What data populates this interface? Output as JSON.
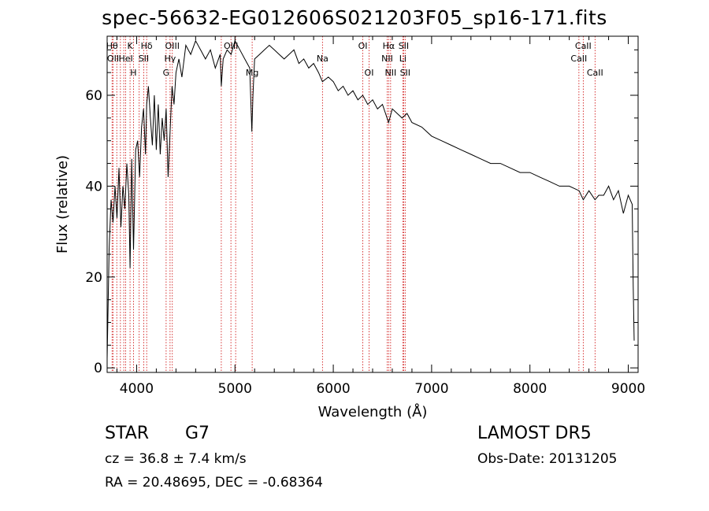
{
  "title": "spec-56632-EG012606S021203F05_sp16-171.fits",
  "info": {
    "object_class": "STAR",
    "subclass": "G7",
    "survey": "LAMOST DR5",
    "redshift": "cz = 36.8 ± 7.4 km/s",
    "obs_date": "Obs-Date: 20131205",
    "coords": "RA =  20.48695, DEC =  -0.68364"
  },
  "colors": {
    "spectrum": "#000000",
    "line_markers": "#cc0000",
    "axes": "#000000"
  },
  "chart_data": {
    "type": "line",
    "xlabel": "Wavelength (Å)",
    "ylabel": "Flux (relative)",
    "xlim": [
      3700,
      9100
    ],
    "ylim": [
      -1,
      73
    ],
    "x_ticks": [
      4000,
      5000,
      6000,
      7000,
      8000,
      9000
    ],
    "y_ticks": [
      0,
      20,
      40,
      60
    ],
    "grid": false,
    "series": [
      {
        "x": [
          3700,
          3720,
          3740,
          3760,
          3780,
          3800,
          3820,
          3840,
          3860,
          3880,
          3900,
          3920,
          3933,
          3950,
          3968,
          3990,
          4010,
          4030,
          4050,
          4070,
          4090,
          4102,
          4120,
          4140,
          4160,
          4180,
          4200,
          4220,
          4240,
          4260,
          4280,
          4300,
          4320,
          4340,
          4360,
          4380,
          4400,
          4430,
          4460,
          4500,
          4550,
          4600,
          4650,
          4700,
          4750,
          4800,
          4850,
          4861,
          4880,
          4920,
          4960,
          5000,
          5050,
          5100,
          5150,
          5172,
          5183,
          5200,
          5250,
          5300,
          5350,
          5400,
          5450,
          5500,
          5550,
          5600,
          5650,
          5700,
          5750,
          5800,
          5850,
          5890,
          5950,
          6000,
          6050,
          6100,
          6150,
          6200,
          6250,
          6300,
          6350,
          6400,
          6450,
          6500,
          6563,
          6600,
          6650,
          6700,
          6750,
          6800,
          6900,
          7000,
          7100,
          7200,
          7300,
          7400,
          7500,
          7600,
          7700,
          7800,
          7900,
          8000,
          8100,
          8200,
          8300,
          8400,
          8500,
          8542,
          8600,
          8662,
          8700,
          8750,
          8800,
          8850,
          8900,
          8950,
          9000,
          9040,
          9050,
          9060
        ],
        "y": [
          2,
          26,
          37,
          32,
          40,
          33,
          44,
          31,
          40,
          35,
          45,
          38,
          22,
          46,
          26,
          48,
          50,
          42,
          53,
          57,
          47,
          58,
          62,
          55,
          49,
          60,
          48,
          58,
          47,
          55,
          50,
          57,
          42,
          52,
          62,
          58,
          65,
          68,
          64,
          71,
          69,
          72,
          70,
          68,
          70,
          66,
          69,
          62,
          68,
          70,
          69,
          72,
          70,
          68,
          66,
          52,
          60,
          68,
          69,
          70,
          71,
          70,
          69,
          68,
          69,
          70,
          67,
          68,
          66,
          67,
          65,
          63,
          64,
          63,
          61,
          62,
          60,
          61,
          59,
          60,
          58,
          59,
          57,
          58,
          54,
          57,
          56,
          55,
          56,
          54,
          53,
          51,
          50,
          49,
          48,
          47,
          46,
          45,
          45,
          44,
          43,
          43,
          42,
          41,
          40,
          40,
          39,
          37,
          39,
          37,
          38,
          38,
          40,
          37,
          39,
          34,
          38,
          36,
          18,
          6
        ]
      }
    ],
    "line_markers": [
      {
        "x": 3750,
        "label": "Hθ",
        "row": 1
      },
      {
        "x": 3760,
        "label": "OII",
        "row": 2
      },
      {
        "x": 3798,
        "label": "",
        "row": 0
      },
      {
        "x": 3835,
        "label": "",
        "row": 0
      },
      {
        "x": 3869,
        "label": "",
        "row": 0
      },
      {
        "x": 3889,
        "label": "HeI",
        "row": 2
      },
      {
        "x": 3933,
        "label": "K",
        "row": 1
      },
      {
        "x": 3968,
        "label": "H",
        "row": 3
      },
      {
        "x": 4026,
        "label": "",
        "row": 0
      },
      {
        "x": 4072,
        "label": "SII",
        "row": 2
      },
      {
        "x": 4102,
        "label": "Hδ",
        "row": 1
      },
      {
        "x": 4300,
        "label": "G",
        "row": 3
      },
      {
        "x": 4340,
        "label": "Hγ",
        "row": 2
      },
      {
        "x": 4363,
        "label": "OIII",
        "row": 1
      },
      {
        "x": 4861,
        "label": "",
        "row": 0
      },
      {
        "x": 4959,
        "label": "OIII",
        "row": 1
      },
      {
        "x": 5007,
        "label": "",
        "row": 0
      },
      {
        "x": 5175,
        "label": "Mg",
        "row": 3
      },
      {
        "x": 5890,
        "label": "Na",
        "row": 2
      },
      {
        "x": 6300,
        "label": "OI",
        "row": 1
      },
      {
        "x": 6364,
        "label": "OI",
        "row": 3
      },
      {
        "x": 6548,
        "label": "NII",
        "row": 2
      },
      {
        "x": 6563,
        "label": "Hα",
        "row": 1
      },
      {
        "x": 6583,
        "label": "NII",
        "row": 3
      },
      {
        "x": 6707,
        "label": "Li",
        "row": 2
      },
      {
        "x": 6716,
        "label": "SII",
        "row": 1
      },
      {
        "x": 6731,
        "label": "SII",
        "row": 3
      },
      {
        "x": 8498,
        "label": "CaII",
        "row": 2
      },
      {
        "x": 8542,
        "label": "CaII",
        "row": 1
      },
      {
        "x": 8662,
        "label": "CaII",
        "row": 3
      }
    ]
  }
}
